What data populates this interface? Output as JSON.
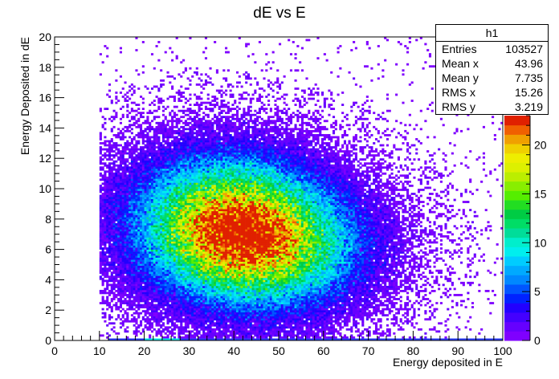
{
  "chart_data": {
    "type": "heatmap",
    "title": "dE vs E",
    "xlabel": "Energy deposited in E",
    "ylabel": "Energy Deposited in dE",
    "xlim": [
      0,
      100
    ],
    "ylim": [
      0,
      20
    ],
    "xticks": [
      0,
      10,
      20,
      30,
      40,
      50,
      60,
      70,
      80,
      90,
      100
    ],
    "yticks": [
      0,
      2,
      4,
      6,
      8,
      10,
      12,
      14,
      16,
      18,
      20
    ],
    "colorbar": {
      "min": 0,
      "max": 23,
      "ticks": [
        0,
        5,
        10,
        15,
        20
      ]
    },
    "distribution": {
      "description_free": true,
      "components": [
        {
          "cx": 37,
          "cy": 7.9,
          "sx": 12.5,
          "sy": 2.7,
          "weight": 1.0
        },
        {
          "cx": 48,
          "cy": 6.2,
          "sx": 13.0,
          "sy": 2.6,
          "weight": 0.9
        }
      ],
      "peak_region": {
        "x": [
          30,
          52
        ],
        "y": [
          5,
          9
        ]
      },
      "bottom_row_band": {
        "x": [
          12,
          100
        ],
        "y": [
          0,
          0.1
        ]
      }
    },
    "stats_box": {
      "name": "h1",
      "entries": 103527,
      "mean_x": 43.96,
      "mean_y": 7.735,
      "rms_x": 15.26,
      "rms_y": 3.219
    }
  },
  "stats_labels": {
    "entries": "Entries",
    "mean_x": "Mean x",
    "mean_y": "Mean y",
    "rms_x": "RMS x",
    "rms_y": "RMS y"
  }
}
